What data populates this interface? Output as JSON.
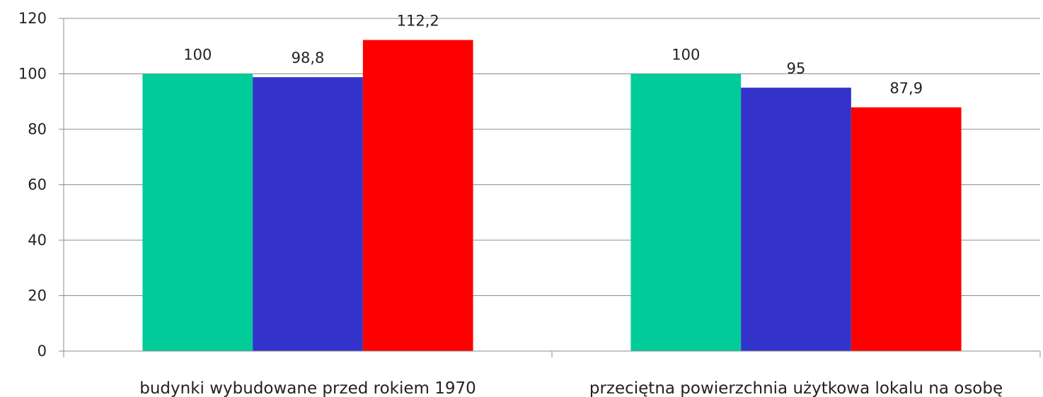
{
  "chart_data": {
    "type": "bar",
    "title": "",
    "xlabel": "",
    "ylabel": "",
    "ylim": [
      0,
      120
    ],
    "yticks": [
      0,
      20,
      40,
      60,
      80,
      100,
      120
    ],
    "grid": true,
    "categories": [
      "budynki wybudowane przed rokiem 1970",
      "przeciętna powierzchnia użytkowa lokalu na osobę"
    ],
    "series": [
      {
        "color": "#00cc99",
        "values": [
          100,
          100
        ],
        "labels": [
          "100",
          "100"
        ]
      },
      {
        "color": "#3333cc",
        "values": [
          98.8,
          95
        ],
        "labels": [
          "98,8",
          "95"
        ]
      },
      {
        "color": "#ff0000",
        "values": [
          112.2,
          87.9
        ],
        "labels": [
          "112,2",
          "87,9"
        ]
      }
    ]
  }
}
